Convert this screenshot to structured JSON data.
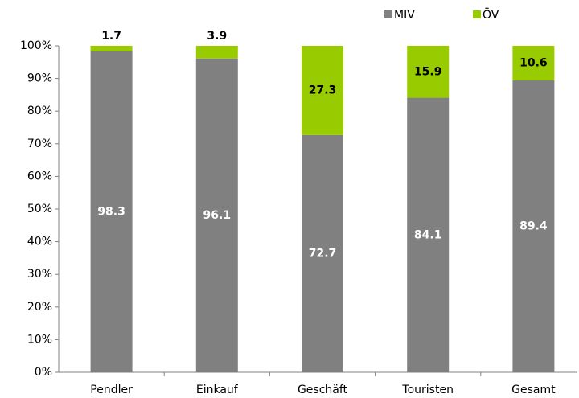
{
  "chart_data": {
    "type": "stacked-bar",
    "categories": [
      "Pendler",
      "Einkauf",
      "Geschäft",
      "Touristen",
      "Gesamt"
    ],
    "series": [
      {
        "name": "MIV",
        "color": "#808080",
        "values": [
          98.3,
          96.1,
          72.7,
          84.1,
          89.4
        ]
      },
      {
        "name": "ÖV",
        "color": "#99cc00",
        "values": [
          1.7,
          3.9,
          27.3,
          15.9,
          10.6
        ]
      }
    ],
    "ylim": [
      0,
      100
    ],
    "yticks": [
      {
        "value": 0,
        "label": "0%"
      },
      {
        "value": 10,
        "label": "10%"
      },
      {
        "value": 20,
        "label": "20%"
      },
      {
        "value": 30,
        "label": "30%"
      },
      {
        "value": 40,
        "label": "40%"
      },
      {
        "value": 50,
        "label": "50%"
      },
      {
        "value": 60,
        "label": "60%"
      },
      {
        "value": 70,
        "label": "70%"
      },
      {
        "value": 80,
        "label": "80%"
      },
      {
        "value": 90,
        "label": "90%"
      },
      {
        "value": 100,
        "label": "100%"
      }
    ],
    "grid": false,
    "legend": "top-right"
  }
}
